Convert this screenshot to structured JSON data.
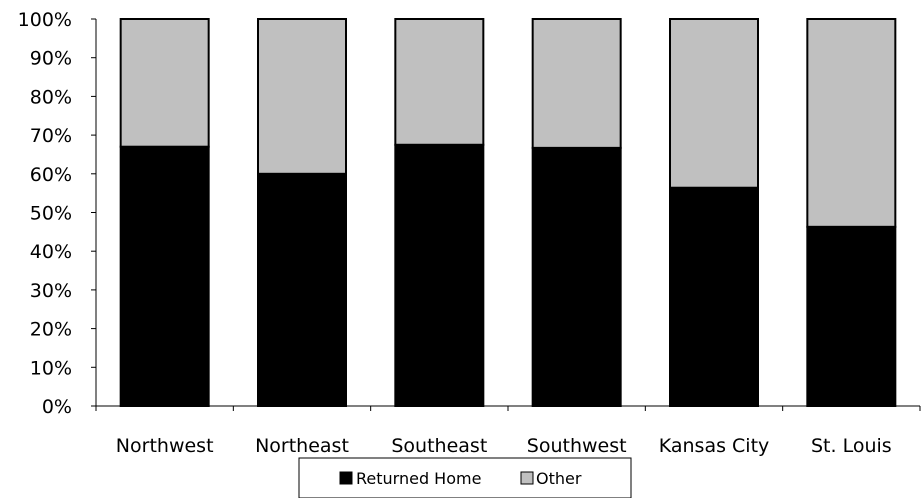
{
  "chart_data": {
    "type": "bar",
    "stacked": "percent",
    "categories": [
      "Northwest",
      "Northeast",
      "Southeast",
      "Southwest",
      "Kansas City",
      "St. Louis"
    ],
    "series": [
      {
        "name": "Returned Home",
        "color": "#000000",
        "values": [
          67,
          60,
          67.5,
          66.7,
          56.4,
          46.3
        ]
      },
      {
        "name": "Other",
        "color": "#c0c0c0",
        "values": [
          33,
          40,
          32.5,
          33.3,
          43.6,
          53.7
        ]
      }
    ],
    "ylim": [
      0,
      100
    ],
    "yticks": [
      "0%",
      "10%",
      "20%",
      "30%",
      "40%",
      "50%",
      "60%",
      "70%",
      "80%",
      "90%",
      "100%"
    ],
    "grid": false,
    "legend_position": "bottom"
  }
}
